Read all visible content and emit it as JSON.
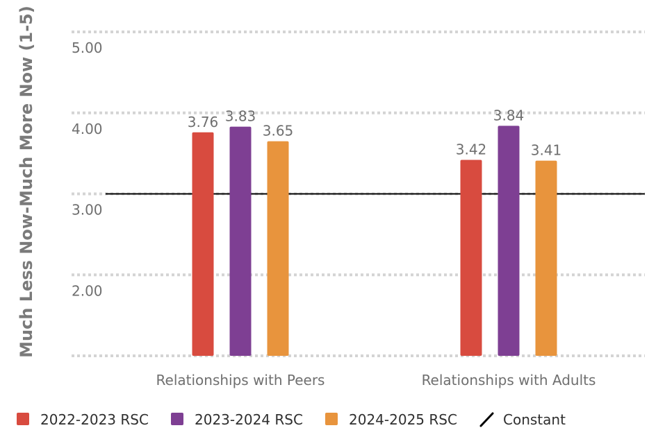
{
  "chart_data": {
    "type": "bar",
    "title": "",
    "xlabel": "",
    "ylabel": "Much Less Now-Much More Now (1-5)",
    "ylim": [
      1,
      5
    ],
    "yticks": [
      "2.00",
      "3.00",
      "4.00",
      "5.00"
    ],
    "ytick_values": [
      2,
      3,
      4,
      5
    ],
    "grid": true,
    "legend_position": "bottom",
    "categories": [
      "Relationships with Peers",
      "Relationships with Adults"
    ],
    "series": [
      {
        "name": "2022-2023 RSC",
        "values": [
          3.76,
          3.42
        ],
        "labels": [
          "3.76",
          "3.42"
        ],
        "color": "#d84b3f"
      },
      {
        "name": "2023-2024 RSC",
        "values": [
          3.83,
          3.84
        ],
        "labels": [
          "3.83",
          "3.84"
        ],
        "color": "#7e3f93"
      },
      {
        "name": "2024-2025 RSC",
        "values": [
          3.65,
          3.41
        ],
        "labels": [
          "3.65",
          "3.41"
        ],
        "color": "#e8943d"
      }
    ],
    "constant": {
      "name": "Constant",
      "value": 3,
      "color": "#000000"
    }
  }
}
